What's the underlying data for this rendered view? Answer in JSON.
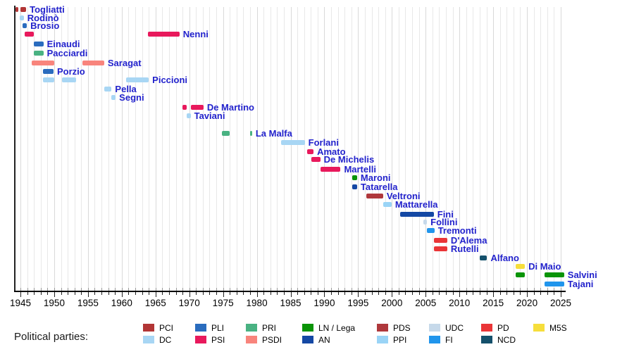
{
  "legend": {
    "title": "Political parties:"
  },
  "chart_data": {
    "type": "bar",
    "subtype": "timeline",
    "title": "",
    "xlabel": "",
    "ylabel": "",
    "x_range": [
      1944.1,
      2025.6
    ],
    "x_ticks": [
      1945,
      1950,
      1955,
      1960,
      1965,
      1970,
      1975,
      1980,
      1985,
      1990,
      1995,
      2000,
      2005,
      2010,
      2015,
      2020,
      2025
    ],
    "minor_tick_interval": 1,
    "grid": true,
    "legend_position": "bottom",
    "styles": {
      "person_label_color": "#2222cc",
      "axis_color": "#000000",
      "gridline_color": "#e8e8e8",
      "gridline_major_color": "#d9d9d9"
    },
    "parties": [
      {
        "id": "PCI",
        "label": "PCI",
        "color": "#b23535"
      },
      {
        "id": "DC",
        "label": "DC",
        "color": "#a8d6f4"
      },
      {
        "id": "PLI",
        "label": "PLI",
        "color": "#2a6cbe"
      },
      {
        "id": "PSI",
        "label": "PSI",
        "color": "#e8195c"
      },
      {
        "id": "PRI",
        "label": "PRI",
        "color": "#49b282"
      },
      {
        "id": "PSDI",
        "label": "PSDI",
        "color": "#f8847c"
      },
      {
        "id": "LN",
        "label": "LN / Lega",
        "color": "#0a9407"
      },
      {
        "id": "AN",
        "label": "AN",
        "color": "#1448a4"
      },
      {
        "id": "PDS",
        "label": "PDS",
        "color": "#af383c"
      },
      {
        "id": "PPI",
        "label": "PPI",
        "color": "#9ad4f6"
      },
      {
        "id": "UDC",
        "label": "UDC",
        "color": "#c6d9ea"
      },
      {
        "id": "FI",
        "label": "FI",
        "color": "#2095ec"
      },
      {
        "id": "PD",
        "label": "PD",
        "color": "#ea3537"
      },
      {
        "id": "NCD",
        "label": "NCD",
        "color": "#14506b"
      },
      {
        "id": "M5S",
        "label": "M5S",
        "color": "#f6de3b"
      }
    ],
    "people": [
      {
        "name": "Togliatti",
        "party": "PCI",
        "terms": [
          [
            1944.3,
            1944.65
          ],
          [
            1945.0,
            1945.85
          ]
        ]
      },
      {
        "name": "Rodinò",
        "party": "DC",
        "terms": [
          [
            1944.85,
            1945.5
          ]
        ]
      },
      {
        "name": "Brosio",
        "party": "PLI",
        "terms": [
          [
            1945.3,
            1945.95
          ]
        ]
      },
      {
        "name": "Nenni",
        "party": "PSI",
        "terms": [
          [
            1945.6,
            1947.0
          ],
          [
            1963.9,
            1968.55
          ]
        ]
      },
      {
        "name": "Einaudi",
        "party": "PLI",
        "terms": [
          [
            1947.0,
            1948.4
          ]
        ]
      },
      {
        "name": "Pacciardi",
        "party": "PRI",
        "terms": [
          [
            1947.0,
            1948.4
          ]
        ]
      },
      {
        "name": "Saragat",
        "party": "PSDI",
        "terms": [
          [
            1946.7,
            1950.0
          ],
          [
            1954.2,
            1957.4
          ]
        ]
      },
      {
        "name": "Porzio",
        "party": "PLI",
        "terms": [
          [
            1948.3,
            1949.9
          ]
        ]
      },
      {
        "name": "Piccioni",
        "party": "DC",
        "terms": [
          [
            1948.3,
            1950.0
          ],
          [
            1951.2,
            1953.2
          ],
          [
            1960.6,
            1964.0
          ]
        ]
      },
      {
        "name": "Pella",
        "party": "DC",
        "terms": [
          [
            1957.4,
            1958.5
          ]
        ]
      },
      {
        "name": "Segni",
        "party": "DC",
        "terms": [
          [
            1958.5,
            1959.1
          ]
        ]
      },
      {
        "name": "De Martino",
        "party": "PSI",
        "terms": [
          [
            1968.95,
            1969.6
          ],
          [
            1970.2,
            1972.1
          ]
        ]
      },
      {
        "name": "Taviani",
        "party": "DC",
        "terms": [
          [
            1969.6,
            1970.2
          ]
        ]
      },
      {
        "name": "La Malfa",
        "party": "PRI",
        "terms": [
          [
            1974.8,
            1976.0
          ],
          [
            1979.05,
            1979.3
          ]
        ]
      },
      {
        "name": "Forlani",
        "party": "DC",
        "terms": [
          [
            1983.6,
            1987.1
          ]
        ]
      },
      {
        "name": "Amato",
        "party": "PSI",
        "terms": [
          [
            1987.4,
            1988.4
          ]
        ]
      },
      {
        "name": "De Michelis",
        "party": "PSI",
        "terms": [
          [
            1988.1,
            1989.4
          ]
        ]
      },
      {
        "name": "Martelli",
        "party": "PSI",
        "terms": [
          [
            1989.4,
            1992.4
          ]
        ]
      },
      {
        "name": "Maroni",
        "party": "LN",
        "terms": [
          [
            1994.1,
            1994.85
          ]
        ]
      },
      {
        "name": "Tatarella",
        "party": "AN",
        "terms": [
          [
            1994.1,
            1994.85
          ]
        ]
      },
      {
        "name": "Veltroni",
        "party": "PDS",
        "terms": [
          [
            1996.2,
            1998.7
          ]
        ]
      },
      {
        "name": "Mattarella",
        "party": "PPI",
        "terms": [
          [
            1998.7,
            1999.95
          ]
        ]
      },
      {
        "name": "Fini",
        "party": "AN",
        "terms": [
          [
            2001.2,
            2006.2
          ]
        ]
      },
      {
        "name": "Follini",
        "party": "UDC",
        "terms": [
          [
            2004.7,
            2005.2
          ]
        ]
      },
      {
        "name": "Tremonti",
        "party": "FI",
        "terms": [
          [
            2005.2,
            2006.3
          ]
        ]
      },
      {
        "name": "D'Alema",
        "party": "PD",
        "terms": [
          [
            2006.2,
            2008.2
          ]
        ]
      },
      {
        "name": "Rutelli",
        "party": "PD",
        "terms": [
          [
            2006.2,
            2008.2
          ]
        ]
      },
      {
        "name": "Alfano",
        "party": "NCD",
        "terms": [
          [
            2013.0,
            2014.1
          ]
        ]
      },
      {
        "name": "Di Maio",
        "party": "M5S",
        "terms": [
          [
            2018.3,
            2019.7
          ]
        ]
      },
      {
        "name": "Salvini",
        "party": "LN",
        "terms": [
          [
            2018.3,
            2019.7
          ],
          [
            2022.6,
            2025.5
          ]
        ]
      },
      {
        "name": "Tajani",
        "party": "FI",
        "terms": [
          [
            2022.6,
            2025.5
          ]
        ]
      }
    ]
  }
}
